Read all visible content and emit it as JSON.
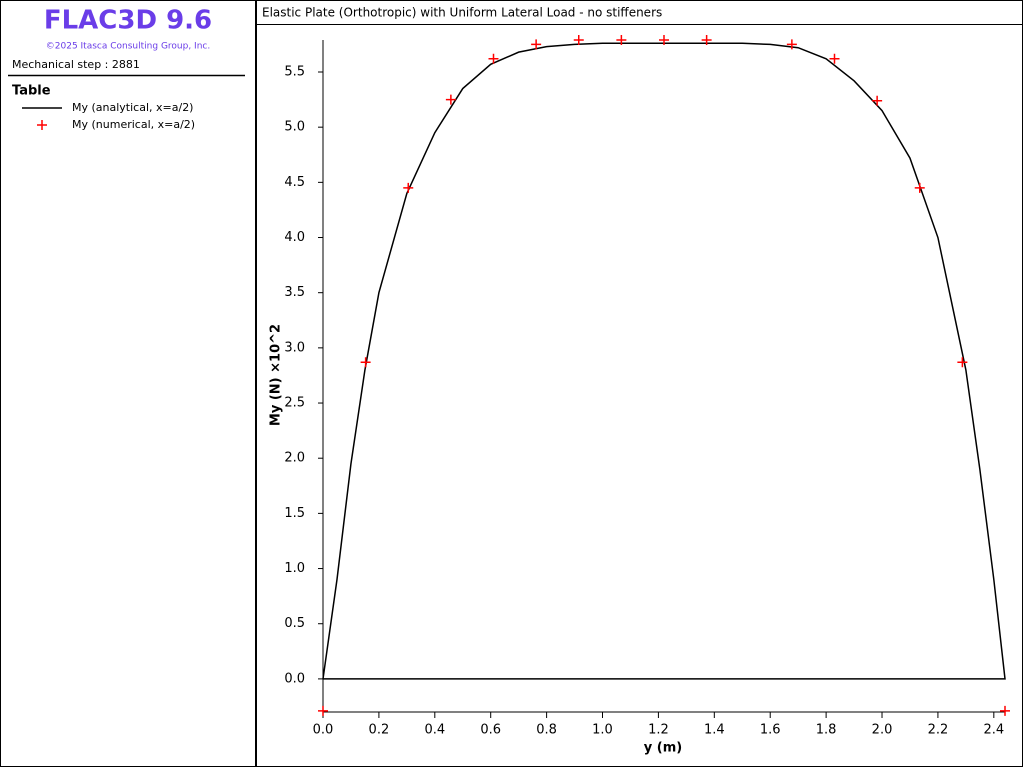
{
  "panel": {
    "app_title": "FLAC3D 9.6",
    "copyright": "©2025 Itasca Consulting Group, Inc.",
    "step": "Mechanical step : 2881",
    "legend_title": "Table"
  },
  "chart_data": {
    "type": "line",
    "title": "Elastic Plate (Orthotropic) with Uniform Lateral Load - no stiffeners",
    "xlabel": "y (m)",
    "ylabel": "My (N) ×10^2",
    "xlim": [
      0,
      2.44
    ],
    "ylim": [
      -0.3,
      5.79
    ],
    "xticks": [
      {
        "value": 0,
        "label": "0.0"
      },
      0.2,
      0.4,
      0.6,
      0.8,
      {
        "value": 1,
        "label": "1.0"
      },
      1.2,
      1.4,
      1.6,
      1.8,
      {
        "value": 2,
        "label": "2.0"
      },
      2.2,
      2.4
    ],
    "yticks": [
      {
        "value": 0,
        "label": "0.0"
      },
      0.5,
      {
        "value": 1,
        "label": "1.0"
      },
      1.5,
      {
        "value": 2,
        "label": "2.0"
      },
      2.5,
      {
        "value": 3,
        "label": "3.0"
      },
      3.5,
      {
        "value": 4,
        "label": "4.0"
      },
      4.5,
      {
        "value": 5,
        "label": "5.0"
      },
      5.5
    ],
    "series": [
      {
        "name": "My (analytical, x=a/2)",
        "color": "#000000",
        "marker": "line",
        "x": [
          0,
          0.05,
          0.1,
          0.15,
          0.2,
          0.3,
          0.4,
          0.5,
          0.6,
          0.7,
          0.8,
          0.9,
          1.0,
          1.22,
          1.5,
          1.6,
          1.7,
          1.8,
          1.9,
          2.0,
          2.1,
          2.2,
          2.3,
          2.35,
          2.4,
          2.44,
          0
        ],
        "values": [
          0,
          0.9,
          1.95,
          2.8,
          3.5,
          4.4,
          4.95,
          5.35,
          5.57,
          5.68,
          5.73,
          5.75,
          5.76,
          5.76,
          5.76,
          5.75,
          5.72,
          5.62,
          5.42,
          5.15,
          4.72,
          4.0,
          2.8,
          1.9,
          0.9,
          0,
          0
        ]
      },
      {
        "name": "My (numerical, x=a/2)",
        "color": "#ff0000",
        "marker": "plus",
        "x": [
          0,
          0.1525,
          0.305,
          0.4575,
          0.61,
          0.7625,
          0.915,
          1.0675,
          1.22,
          1.3725,
          1.6775,
          1.83,
          1.9825,
          2.135,
          2.2875,
          2.44
        ],
        "values": [
          -0.29,
          2.87,
          4.45,
          5.25,
          5.62,
          5.75,
          5.79,
          5.79,
          5.79,
          5.79,
          5.75,
          5.62,
          5.24,
          4.45,
          2.87,
          -0.29
        ]
      }
    ]
  }
}
